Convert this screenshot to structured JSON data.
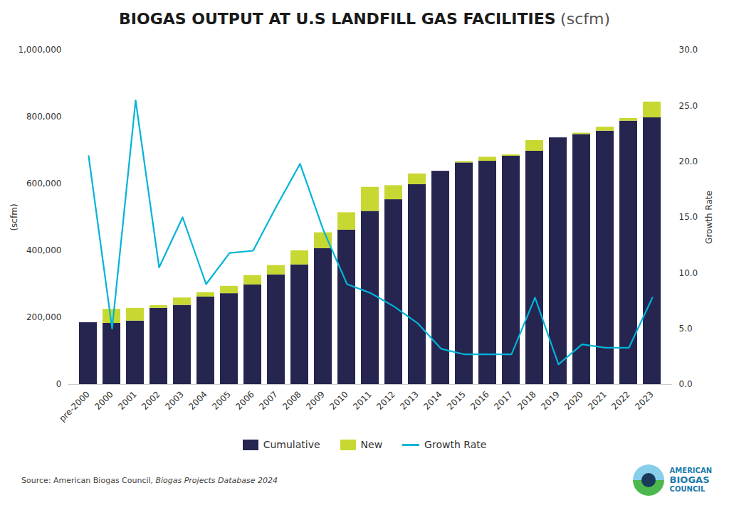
{
  "chart_data": {
    "type": "bar",
    "title": "BIOGAS OUTPUT AT U.S LANDFILL GAS FACILITIES",
    "subtitle": "(scfm)",
    "y_label": "(scfm)",
    "y2_label": "Growth Rate",
    "annotations": [
      "Source: American Biogas Council,",
      "Biogas Projects Database 2024",
      "AMERICAN",
      "BIOGAS",
      "COUNCIL"
    ],
    "categories": [
      "pre-2000",
      "2000",
      "2001",
      "2002",
      "2003",
      "2004",
      "2005",
      "2006",
      "2007",
      "2008",
      "2009",
      "2010",
      "2011",
      "2012",
      "2013",
      "2014",
      "2015",
      "2016",
      "2017",
      "2018",
      "2019",
      "2020",
      "2021",
      "2022",
      "2023"
    ],
    "stacked": true,
    "series": [
      {
        "name": "Cumulative",
        "color": "#252550",
        "values": [
          185000,
          183000,
          190000,
          228000,
          237000,
          262000,
          272000,
          298000,
          328000,
          358000,
          407000,
          462000,
          518000,
          553000,
          598000,
          638000,
          663000,
          668000,
          683000,
          698000,
          738000,
          748000,
          758000,
          788000,
          798000
        ]
      },
      {
        "name": "New",
        "color": "#c8d832",
        "values": [
          0,
          42000,
          38000,
          8000,
          22000,
          13000,
          22000,
          28000,
          28000,
          42000,
          47000,
          52000,
          72000,
          42000,
          32000,
          0,
          4000,
          12000,
          4000,
          32000,
          0,
          4000,
          12000,
          8000,
          47000
        ]
      },
      {
        "name": "Growth Rate",
        "color": "#00b4d8",
        "type": "line",
        "axis": "y2",
        "values": [
          20.5,
          5.0,
          25.5,
          10.5,
          15.0,
          9.0,
          11.8,
          12.0,
          16.0,
          19.8,
          13.8,
          9.0,
          8.2,
          7.0,
          5.5,
          3.2,
          2.7,
          2.7,
          2.7,
          7.8,
          1.8,
          3.6,
          3.3,
          3.3,
          7.8
        ]
      }
    ],
    "ylim": [
      0,
      1000000
    ],
    "yticks": [
      0,
      {
        "value": 200000,
        "label": "200,000"
      },
      {
        "value": 400000,
        "label": "400,000"
      },
      {
        "value": 600000,
        "label": "600,000"
      },
      {
        "value": 800000,
        "label": "800,000"
      },
      {
        "value": 1000000,
        "label": "1,000,000"
      }
    ],
    "y2lim": [
      0,
      30.0
    ],
    "y2ticks": [
      {
        "value": 0.0,
        "label": "0.0"
      },
      {
        "value": 5.0,
        "label": "5.0"
      },
      {
        "value": 10.0,
        "label": "10.0"
      },
      {
        "value": 15.0,
        "label": "15.0"
      },
      {
        "value": 20.0,
        "label": "20.0"
      },
      {
        "value": 25.0,
        "label": "25.0"
      },
      {
        "value": 30.0,
        "label": "30.0"
      }
    ],
    "grid": false,
    "legend": "bottom"
  }
}
